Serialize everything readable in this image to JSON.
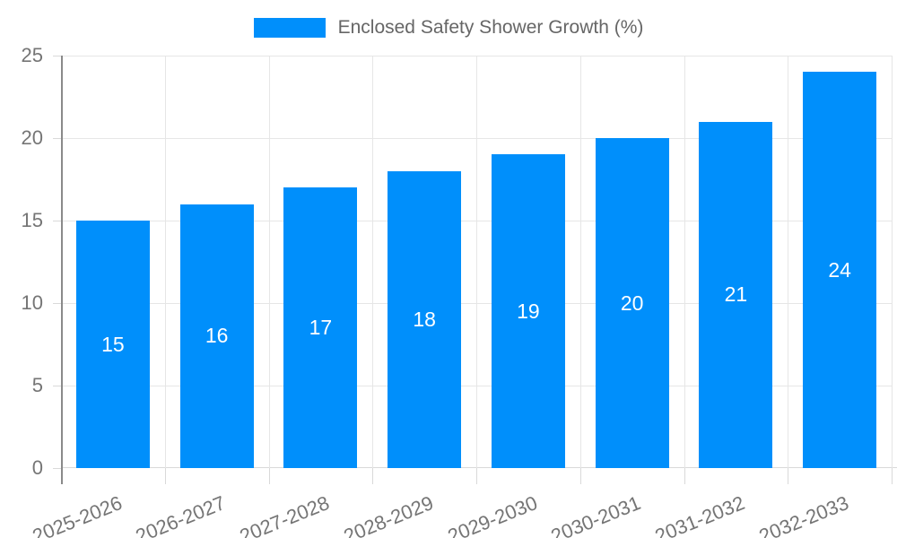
{
  "legend": {
    "label": "Enclosed Safety Shower Growth (%)"
  },
  "chart_data": {
    "type": "bar",
    "title": "Enclosed Safety Shower Growth (%)",
    "categories": [
      "2025-2026",
      "2026-2027",
      "2027-2028",
      "2028-2029",
      "2029-2030",
      "2030-2031",
      "2031-2032",
      "2032-2033"
    ],
    "values": [
      15,
      16,
      17,
      18,
      19,
      20,
      21,
      24
    ],
    "xlabel": "",
    "ylabel": "",
    "ylim": [
      0,
      25
    ],
    "yticks": [
      0,
      5,
      10,
      15,
      20,
      25
    ],
    "grid": true,
    "legend_position": "top",
    "colors": {
      "bar": "#008FFB",
      "bar_label": "#FFFFFF",
      "axis_text": "#757575",
      "legend_text": "#666666",
      "grid": "#E6E6E6",
      "axis_line": "#8A8A8A",
      "tick": "#D9D9D9"
    }
  }
}
